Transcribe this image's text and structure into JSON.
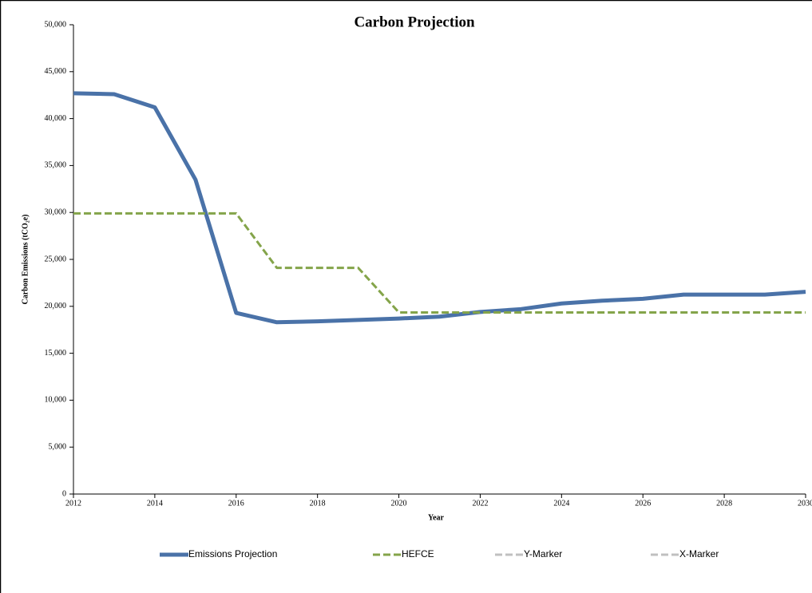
{
  "chart_data": {
    "type": "line",
    "title": "Carbon Projection",
    "x_label": "Year",
    "y_label": "Carbon Emissions (tCO₂e)",
    "x": [
      2012,
      2013,
      2014,
      2015,
      2016,
      2017,
      2018,
      2019,
      2020,
      2021,
      2022,
      2023,
      2024,
      2025,
      2026,
      2027,
      2028,
      2029,
      2030
    ],
    "series": [
      {
        "name": "Emissions Projection",
        "color": "#4a72a8",
        "dashed": false,
        "values": [
          42700,
          42600,
          41200,
          33500,
          19300,
          18300,
          18400,
          18550,
          18700,
          18900,
          19400,
          19700,
          20300,
          20600,
          20800,
          21250,
          21250,
          21250,
          21550
        ]
      },
      {
        "name": "HEFCE",
        "color": "#84a44a",
        "dashed": true,
        "values": [
          29900,
          29900,
          29900,
          29900,
          29900,
          24100,
          24100,
          24100,
          19350,
          19350,
          19350,
          19350,
          19350,
          19350,
          19350,
          19350,
          19350,
          19350,
          19350
        ]
      },
      {
        "name": "Y-Marker",
        "color": "#c0c0c0",
        "dashed": true,
        "values": [
          null,
          null,
          null,
          null,
          null,
          null,
          null,
          null,
          null,
          null,
          null,
          null,
          null,
          null,
          null,
          null,
          null,
          null,
          null
        ]
      },
      {
        "name": "X-Marker",
        "color": "#c0c0c0",
        "dashed": true,
        "values": [
          null,
          null,
          null,
          null,
          null,
          null,
          null,
          null,
          null,
          null,
          null,
          null,
          null,
          null,
          null,
          null,
          null,
          null,
          null
        ]
      }
    ],
    "xlim": [
      2012,
      2030
    ],
    "xticks": [
      2012,
      2014,
      2016,
      2018,
      2020,
      2022,
      2024,
      2026,
      2028,
      2030
    ],
    "ylim": [
      0,
      50000
    ],
    "yticks": [
      0,
      {
        "value": 5000,
        "label": "5,000"
      },
      {
        "value": 10000,
        "label": "10,000"
      },
      {
        "value": 15000,
        "label": "15,000"
      },
      {
        "value": 20000,
        "label": "20,000"
      },
      {
        "value": 25000,
        "label": "25,000"
      },
      {
        "value": 30000,
        "label": "30,000"
      },
      {
        "value": 35000,
        "label": "35,000"
      },
      {
        "value": 40000,
        "label": "40,000"
      },
      {
        "value": 45000,
        "label": "45,000"
      },
      {
        "value": 50000,
        "label": "50,000"
      }
    ],
    "grid": false,
    "legend": "bottom"
  }
}
